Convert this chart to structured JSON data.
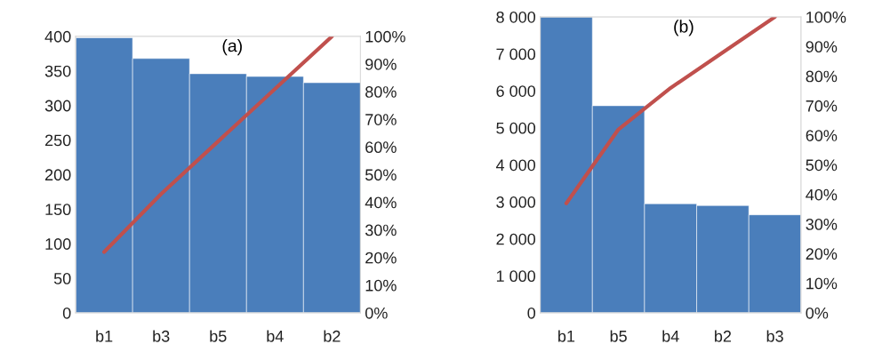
{
  "chart_data": [
    {
      "type": "bar",
      "categories": [
        "b1",
        "b3",
        "b5",
        "b4",
        "b2"
      ],
      "series": [
        {
          "color": "#4a7ebb",
          "values": [
            398,
            368,
            346,
            342,
            333
          ]
        },
        {
          "type": "line",
          "axis": "y2",
          "color": "#c0504d",
          "values": [
            22,
            43,
            62,
            81,
            100
          ]
        }
      ],
      "ylim": [
        0,
        400
      ],
      "yticks": [
        0,
        50,
        100,
        150,
        200,
        250,
        300,
        350,
        400
      ],
      "y2lim": [
        0,
        100
      ],
      "y2ticks": [
        {
          "value": 0,
          "label": "0%"
        },
        {
          "value": 10,
          "label": "10%"
        },
        {
          "value": 20,
          "label": "20%"
        },
        {
          "value": 30,
          "label": "30%"
        },
        {
          "value": 40,
          "label": "40%"
        },
        {
          "value": 50,
          "label": "50%"
        },
        {
          "value": 60,
          "label": "60%"
        },
        {
          "value": 70,
          "label": "70%"
        },
        {
          "value": 80,
          "label": "80%"
        },
        {
          "value": 90,
          "label": "90%"
        },
        {
          "value": 100,
          "label": "100%"
        }
      ],
      "annotations": [
        "(a)"
      ],
      "grid": false,
      "legend": false
    },
    {
      "type": "bar",
      "categories": [
        "b1",
        "b5",
        "b4",
        "b2",
        "b3"
      ],
      "series": [
        {
          "color": "#4a7ebb",
          "values": [
            8000,
            5600,
            2950,
            2900,
            2650
          ]
        },
        {
          "type": "line",
          "axis": "y2",
          "color": "#c0504d",
          "values": [
            37,
            62,
            76,
            88,
            100
          ]
        }
      ],
      "ylim": [
        0,
        8000
      ],
      "yticks": [
        0,
        {
          "value": 1000,
          "label": "1 000"
        },
        {
          "value": 2000,
          "label": "2 000"
        },
        {
          "value": 3000,
          "label": "3 000"
        },
        {
          "value": 4000,
          "label": "4 000"
        },
        {
          "value": 5000,
          "label": "5 000"
        },
        {
          "value": 6000,
          "label": "6 000"
        },
        {
          "value": 7000,
          "label": "7 000"
        },
        {
          "value": 8000,
          "label": "8 000"
        }
      ],
      "y2lim": [
        0,
        100
      ],
      "y2ticks": [
        {
          "value": 0,
          "label": "0%"
        },
        {
          "value": 10,
          "label": "10%"
        },
        {
          "value": 20,
          "label": "20%"
        },
        {
          "value": 30,
          "label": "30%"
        },
        {
          "value": 40,
          "label": "40%"
        },
        {
          "value": 50,
          "label": "50%"
        },
        {
          "value": 60,
          "label": "60%"
        },
        {
          "value": 70,
          "label": "70%"
        },
        {
          "value": 80,
          "label": "80%"
        },
        {
          "value": 90,
          "label": "90%"
        },
        {
          "value": 100,
          "label": "100%"
        }
      ],
      "annotations": [
        "(b)"
      ],
      "grid": false,
      "legend": false
    }
  ]
}
